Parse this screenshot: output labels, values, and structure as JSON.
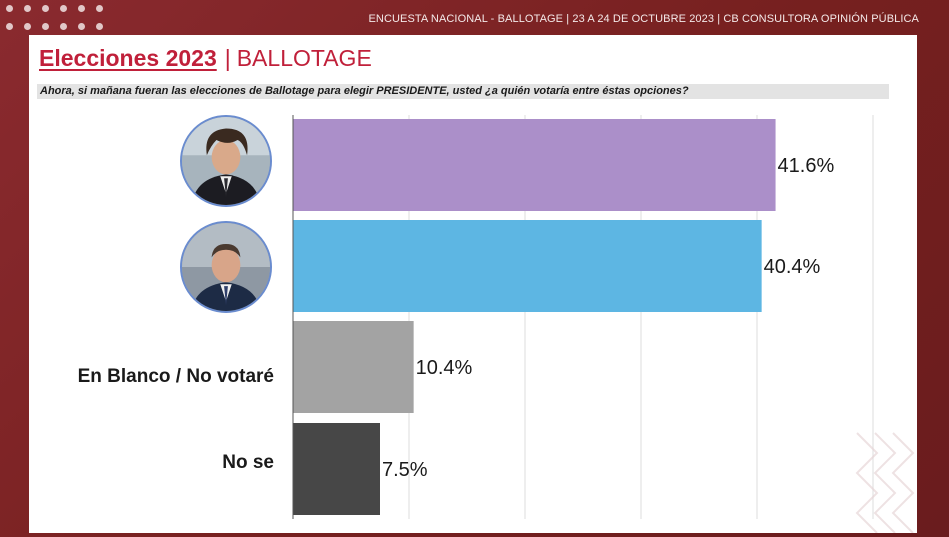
{
  "header": {
    "subtitle": "ENCUESTA NACIONAL - BALLOTAGE  | 23 A 24 DE OCTUBRE 2023 | CB CONSULTORA OPINIÓN PÚBLICA"
  },
  "title": {
    "bold": "Elecciones 2023",
    "separator": "|",
    "rest": "BALLOTAGE"
  },
  "question": "Ahora, si mañana fueran las elecciones de Ballotage para elegir PRESIDENTE, usted ¿a quién votaría entre éstas opciones?",
  "colors": {
    "frame": "#7e2328",
    "accent": "#c0203a"
  },
  "chart_data": {
    "type": "bar",
    "orientation": "horizontal",
    "categories": [
      "",
      "",
      "En Blanco / No votaré",
      "No se"
    ],
    "category_display": [
      "candidate-photo",
      "candidate-photo",
      "text",
      "text"
    ],
    "values": [
      41.6,
      40.4,
      10.4,
      7.5
    ],
    "value_labels": [
      "41.6%",
      "40.4%",
      "10.4%",
      "7.5%"
    ],
    "colors": [
      "#ab8fc9",
      "#5db6e3",
      "#a3a3a3",
      "#474747"
    ],
    "xlim": [
      0,
      50
    ],
    "grid": true,
    "legend": "none"
  }
}
